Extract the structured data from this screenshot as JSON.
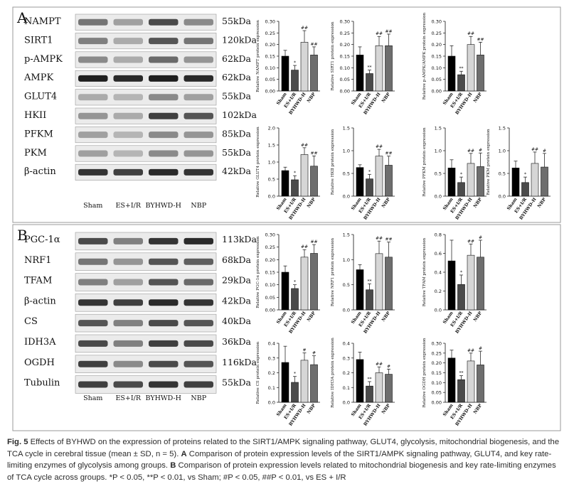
{
  "figure": {
    "panel_a": {
      "letter": "A",
      "blot_rows": [
        {
          "label": "NAMPT",
          "size": "55kDa"
        },
        {
          "label": "SIRT1",
          "size": "120kDa"
        },
        {
          "label": "p-AMPK",
          "size": "62kDa"
        },
        {
          "label": "AMPK",
          "size": "62kDa"
        },
        {
          "label": "GLUT4",
          "size": "55kDa"
        },
        {
          "label": "HKII",
          "size": "102kDa"
        },
        {
          "label": "PFKM",
          "size": "85kDa"
        },
        {
          "label": "PKM",
          "size": "55kDa"
        },
        {
          "label": "β-actin",
          "size": "42kDa"
        }
      ],
      "lane_labels": [
        "Sham",
        "ES+I/R",
        "BYHWD-H",
        "NBP"
      ]
    },
    "panel_b": {
      "letter": "B",
      "blot_rows": [
        {
          "label": "PGC-1α",
          "size": "113kDa"
        },
        {
          "label": "NRF1",
          "size": "68kDa"
        },
        {
          "label": "TFAM",
          "size": "29kDa"
        },
        {
          "label": "β-actin",
          "size": "42kDa"
        },
        {
          "label": "CS",
          "size": "40kDa"
        },
        {
          "label": "IDH3A",
          "size": "36kDa"
        },
        {
          "label": "OGDH",
          "size": "116kDa"
        },
        {
          "label": "Tubulin",
          "size": "55kDa"
        }
      ],
      "lane_labels": [
        "Sham",
        "ES+I/R",
        "BYHWD-H",
        "NBP"
      ]
    }
  },
  "chart_data": [
    {
      "type": "bar",
      "panel": "A",
      "ylabel": "Relative NAMPT protein expression",
      "categories": [
        "Sham",
        "ES+I/R",
        "BYHWD-H",
        "NBP"
      ],
      "values": [
        0.15,
        0.09,
        0.21,
        0.155
      ],
      "errors": [
        0.025,
        0.02,
        0.05,
        0.035
      ],
      "sig": [
        "",
        "*",
        "##",
        "##"
      ],
      "ylim": [
        0,
        0.3
      ],
      "yticks": [
        "0.00",
        "0.05",
        "0.10",
        "0.15",
        "0.20",
        "0.25",
        "0.30"
      ],
      "bar_colors": [
        "#000000",
        "#4a4a4a",
        "#d6d6d6",
        "#6e6e6e"
      ]
    },
    {
      "type": "bar",
      "panel": "A",
      "ylabel": "Relative SIRT1 protein expression",
      "categories": [
        "Sham",
        "ES+I/R",
        "BYHWD-H",
        "NBP"
      ],
      "values": [
        0.155,
        0.075,
        0.195,
        0.195
      ],
      "errors": [
        0.035,
        0.015,
        0.04,
        0.05
      ],
      "sig": [
        "",
        "**",
        "##",
        "##"
      ],
      "ylim": [
        0,
        0.3
      ],
      "yticks": [
        "0.00",
        "0.05",
        "0.10",
        "0.15",
        "0.20",
        "0.25",
        "0.30"
      ],
      "bar_colors": [
        "#000000",
        "#4a4a4a",
        "#d6d6d6",
        "#6e6e6e"
      ]
    },
    {
      "type": "bar",
      "panel": "A",
      "ylabel": "Relative p-AMPK/AMPK protein expression",
      "categories": [
        "Sham",
        "ES+I/R",
        "BYHWD-H",
        "NBP"
      ],
      "values": [
        0.15,
        0.07,
        0.2,
        0.155
      ],
      "errors": [
        0.045,
        0.015,
        0.035,
        0.055
      ],
      "sig": [
        "",
        "**",
        "##",
        "##"
      ],
      "ylim": [
        0,
        0.3
      ],
      "yticks": [
        "0.00",
        "0.05",
        "0.10",
        "0.15",
        "0.20",
        "0.25",
        "0.30"
      ],
      "bar_colors": [
        "#000000",
        "#4a4a4a",
        "#d6d6d6",
        "#6e6e6e"
      ]
    },
    {
      "type": "bar",
      "panel": "A",
      "ylabel": "Relative GLUT4 protein expression",
      "categories": [
        "Sham",
        "ES+I/R",
        "BYHWD-H",
        "NBP"
      ],
      "values": [
        0.75,
        0.48,
        1.22,
        0.88
      ],
      "errors": [
        0.1,
        0.12,
        0.2,
        0.3
      ],
      "sig": [
        "",
        "*",
        "##",
        "##"
      ],
      "ylim": [
        0,
        2.0
      ],
      "yticks": [
        "0.0",
        "0.5",
        "1.0",
        "1.5",
        "2.0"
      ],
      "bar_colors": [
        "#000000",
        "#4a4a4a",
        "#d6d6d6",
        "#6e6e6e"
      ]
    },
    {
      "type": "bar",
      "panel": "A",
      "ylabel": "Relative HKⅡ protein expression",
      "categories": [
        "Sham",
        "ES+I/R",
        "BYHWD-H",
        "NBP"
      ],
      "values": [
        0.63,
        0.38,
        0.88,
        0.68
      ],
      "errors": [
        0.06,
        0.1,
        0.15,
        0.2
      ],
      "sig": [
        "",
        "*",
        "##",
        "##"
      ],
      "ylim": [
        0,
        1.5
      ],
      "yticks": [
        "0.0",
        "0.5",
        "1.0",
        "1.5"
      ],
      "bar_colors": [
        "#000000",
        "#4a4a4a",
        "#d6d6d6",
        "#6e6e6e"
      ]
    },
    {
      "type": "bar",
      "panel": "A",
      "ylabel": "Relative PFKM protein expression",
      "categories": [
        "Sham",
        "ES+I/R",
        "BYHWD-H",
        "NBP"
      ],
      "values": [
        0.62,
        0.3,
        0.72,
        0.65
      ],
      "errors": [
        0.18,
        0.12,
        0.22,
        0.3
      ],
      "sig": [
        "",
        "*",
        "##",
        "#"
      ],
      "ylim": [
        0,
        1.5
      ],
      "yticks": [
        "0.0",
        "0.5",
        "1.0",
        "1.5"
      ],
      "bar_colors": [
        "#000000",
        "#4a4a4a",
        "#d6d6d6",
        "#6e6e6e"
      ]
    },
    {
      "type": "bar",
      "panel": "A",
      "ylabel": "Relative PKM protein expression",
      "categories": [
        "Sham",
        "ES+I/R",
        "BYHWD-H",
        "NBP"
      ],
      "values": [
        0.62,
        0.3,
        0.72,
        0.64
      ],
      "errors": [
        0.15,
        0.12,
        0.25,
        0.3
      ],
      "sig": [
        "",
        "*",
        "##",
        "#"
      ],
      "ylim": [
        0,
        1.5
      ],
      "yticks": [
        "0.0",
        "0.5",
        "1.0",
        "1.5"
      ],
      "bar_colors": [
        "#000000",
        "#4a4a4a",
        "#d6d6d6",
        "#6e6e6e"
      ]
    },
    {
      "type": "bar",
      "panel": "B",
      "ylabel": "Relative PGC-1α protein expression",
      "categories": [
        "Sham",
        "ES+I/R",
        "BYHWD-H",
        "NBP"
      ],
      "values": [
        0.15,
        0.085,
        0.21,
        0.225
      ],
      "errors": [
        0.025,
        0.015,
        0.03,
        0.035
      ],
      "sig": [
        "",
        "*",
        "##",
        "##"
      ],
      "ylim": [
        0,
        0.3
      ],
      "yticks": [
        "0.00",
        "0.05",
        "0.10",
        "0.15",
        "0.20",
        "0.25",
        "0.30"
      ],
      "bar_colors": [
        "#000000",
        "#4a4a4a",
        "#d6d6d6",
        "#6e6e6e"
      ]
    },
    {
      "type": "bar",
      "panel": "B",
      "ylabel": "Relative NRF1 protein expression",
      "categories": [
        "Sham",
        "ES+I/R",
        "BYHWD-H",
        "NBP"
      ],
      "values": [
        0.8,
        0.4,
        1.12,
        1.05
      ],
      "errors": [
        0.1,
        0.12,
        0.25,
        0.3
      ],
      "sig": [
        "",
        "**",
        "##",
        "##"
      ],
      "ylim": [
        0,
        1.5
      ],
      "yticks": [
        "0.0",
        "0.5",
        "1.0",
        "1.5"
      ],
      "bar_colors": [
        "#000000",
        "#4a4a4a",
        "#d6d6d6",
        "#6e6e6e"
      ]
    },
    {
      "type": "bar",
      "panel": "B",
      "ylabel": "Relative TFAM protein expression",
      "categories": [
        "Sham",
        "ES+I/R",
        "BYHWD-H",
        "NBP"
      ],
      "values": [
        0.52,
        0.27,
        0.58,
        0.56
      ],
      "errors": [
        0.22,
        0.1,
        0.12,
        0.18
      ],
      "sig": [
        "",
        "*",
        "##",
        "#"
      ],
      "ylim": [
        0,
        0.8
      ],
      "yticks": [
        "0.0",
        "0.2",
        "0.4",
        "0.6",
        "0.8"
      ],
      "bar_colors": [
        "#000000",
        "#4a4a4a",
        "#d6d6d6",
        "#6e6e6e"
      ]
    },
    {
      "type": "bar",
      "panel": "B",
      "ylabel": "Relative CS protein expression",
      "categories": [
        "Sham",
        "ES+I/R",
        "BYHWD-H",
        "NBP"
      ],
      "values": [
        0.27,
        0.135,
        0.285,
        0.255
      ],
      "errors": [
        0.11,
        0.04,
        0.05,
        0.06
      ],
      "sig": [
        "",
        "*",
        "#",
        "#"
      ],
      "ylim": [
        0,
        0.4
      ],
      "yticks": [
        "0.0",
        "0.1",
        "0.2",
        "0.3",
        "0.4"
      ],
      "bar_colors": [
        "#000000",
        "#4a4a4a",
        "#d6d6d6",
        "#6e6e6e"
      ]
    },
    {
      "type": "bar",
      "panel": "B",
      "ylabel": "Relative IDH3A protein expression",
      "categories": [
        "Sham",
        "ES+I/R",
        "BYHWD-H",
        "NBP"
      ],
      "values": [
        0.29,
        0.11,
        0.2,
        0.19
      ],
      "errors": [
        0.05,
        0.03,
        0.04,
        0.035
      ],
      "sig": [
        "",
        "**",
        "##",
        "#"
      ],
      "ylim": [
        0,
        0.4
      ],
      "yticks": [
        "0.0",
        "0.1",
        "0.2",
        "0.3",
        "0.4"
      ],
      "bar_colors": [
        "#000000",
        "#4a4a4a",
        "#d6d6d6",
        "#6e6e6e"
      ]
    },
    {
      "type": "bar",
      "panel": "B",
      "ylabel": "Relative OGDH protein expression",
      "categories": [
        "Sham",
        "ES+I/R",
        "BYHWD-H",
        "NBP"
      ],
      "values": [
        0.225,
        0.115,
        0.21,
        0.19
      ],
      "errors": [
        0.04,
        0.02,
        0.04,
        0.07
      ],
      "sig": [
        "",
        "**",
        "##",
        "#"
      ],
      "ylim": [
        0,
        0.3
      ],
      "yticks": [
        "0.00",
        "0.05",
        "0.10",
        "0.15",
        "0.20",
        "0.25",
        "0.30"
      ],
      "bar_colors": [
        "#000000",
        "#4a4a4a",
        "#d6d6d6",
        "#6e6e6e"
      ]
    }
  ],
  "caption": {
    "fig_label": "Fig. 5",
    "line1": "Effects of BYHWD on the expression of proteins related to the SIRT1/AMPK signaling pathway, GLUT4, glycolysis, mitochondrial biogenesis,",
    "line2": "and the TCA cycle in cerebral tissue (mean ± SD, n = 5).",
    "a_letter": "A",
    "a_text": "Comparison of protein expression levels of the SIRT1/AMPK signaling pathway, GLUT4,",
    "line3": "and key rate-limiting enzymes of glycolysis among groups.",
    "b_letter": "B",
    "b_text": "Comparison of protein expression levels related to mitochondrial biogenesis and key",
    "line4": "rate-limiting enzymes of TCA cycle across groups. *P < 0.05, **P < 0.01, vs Sham; #P < 0.05, ##P < 0.01, vs ES + I/R"
  }
}
